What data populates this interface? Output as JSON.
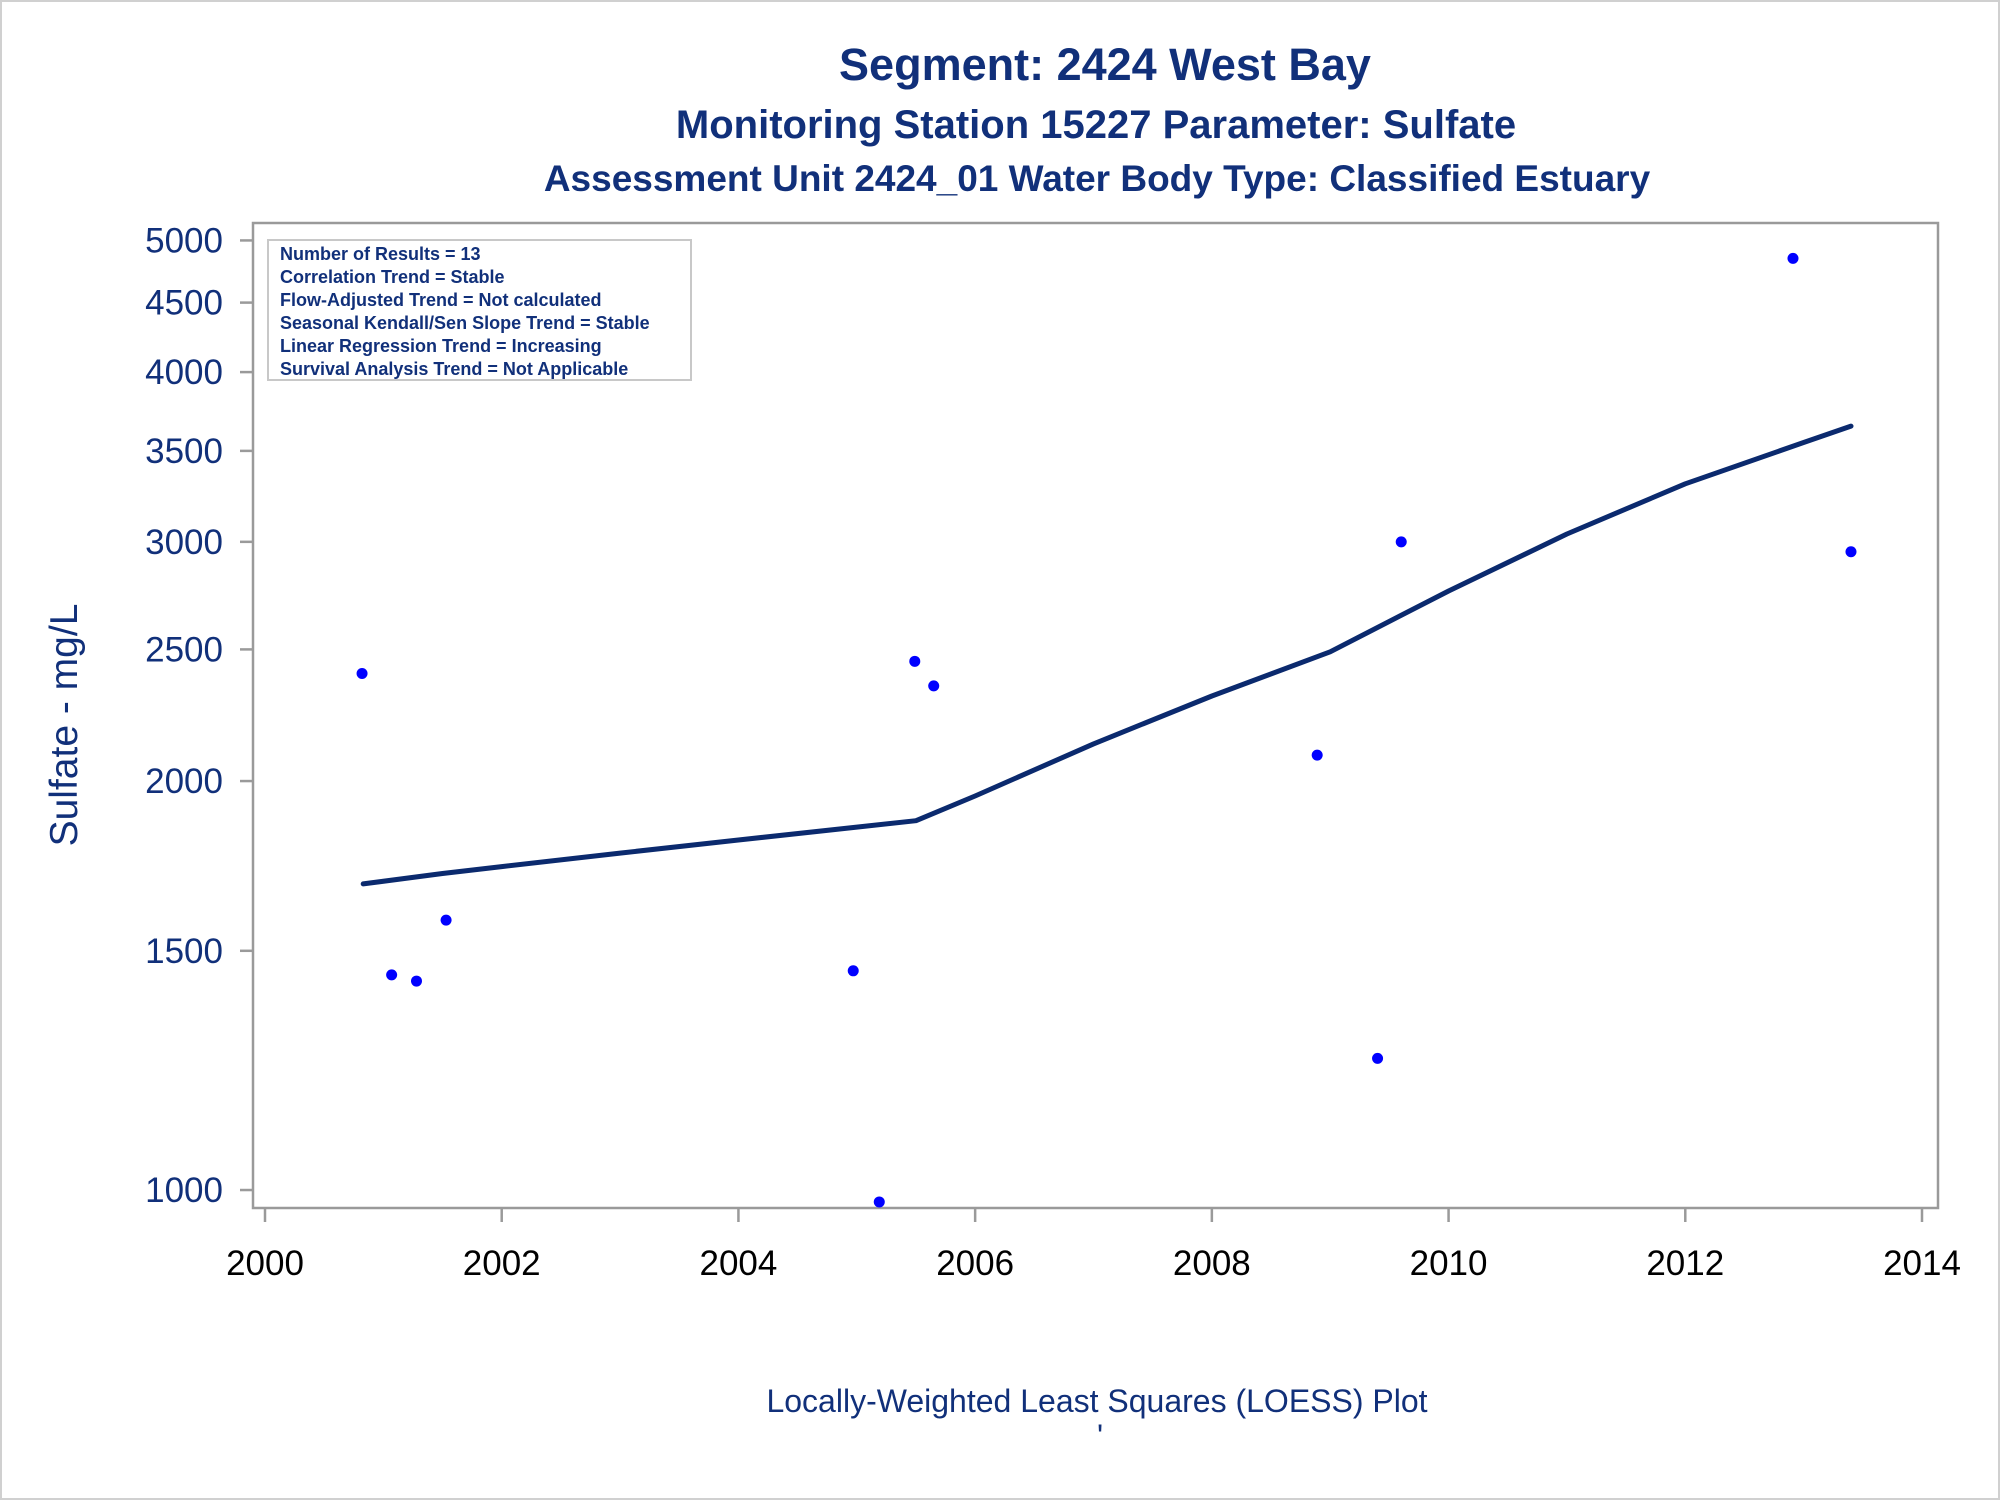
{
  "title_line1": "Segment: 2424  West Bay",
  "title_line2": "Monitoring Station 15227 Parameter: Sulfate",
  "title_line3": "Assessment Unit 2424_01   Water Body Type: Classified Estuary",
  "stats_box": [
    "Number of Results = 13",
    "Correlation Trend = Stable",
    "Flow-Adjusted Trend = Not calculated",
    "Seasonal Kendall/Sen Slope Trend = Stable",
    "Linear Regression Trend = Increasing",
    "Survival Analysis Trend = Not Applicable"
  ],
  "footnote": "Locally-Weighted Least Squares (LOESS) Plot",
  "footnote_mark": "'",
  "colors": {
    "title": "#11307a",
    "y_ticks": "#11307a",
    "x_ticks": "#000000",
    "points": "#0000ff",
    "line": "#0b2a6e",
    "axis": "#9a9a9a"
  },
  "chart_data": {
    "type": "scatter",
    "title": "Segment: 2424  West Bay",
    "xlabel": "",
    "ylabel": "Sulfate - mg/L",
    "y_scale": "log",
    "xlim": [
      2000,
      2014
    ],
    "ylim": [
      970,
      5150
    ],
    "x_ticks": [
      "2000",
      "2002",
      "2004",
      "2006",
      "2008",
      "2010",
      "2012",
      "2014"
    ],
    "y_ticks": [
      "1000",
      "1500",
      "2000",
      "2500",
      "3000",
      "3500",
      "4000",
      "4500",
      "5000"
    ],
    "grid": false,
    "legend": "none",
    "series": [
      {
        "type": "scatter",
        "x": [
          2000.82,
          2001.07,
          2001.28,
          2001.53,
          2004.97,
          2005.19,
          2005.49,
          2005.65,
          2008.89,
          2009.4,
          2009.6,
          2012.91,
          2013.4
        ],
        "y": [
          2400,
          1440,
          1425,
          1580,
          1450,
          980,
          2450,
          2350,
          2090,
          1250,
          3000,
          4850,
          2950
        ]
      },
      {
        "type": "line",
        "x": [
          2000.83,
          2001.5,
          2002.0,
          2003.0,
          2004.0,
          2005.0,
          2005.5,
          2006.0,
          2007.0,
          2008.0,
          2009.0,
          2010.0,
          2011.0,
          2012.0,
          2013.0,
          2013.4
        ],
        "y": [
          1680,
          1710,
          1730,
          1770,
          1810,
          1850,
          1870,
          1950,
          2130,
          2310,
          2490,
          2760,
          3040,
          3310,
          3550,
          3650
        ]
      }
    ]
  }
}
